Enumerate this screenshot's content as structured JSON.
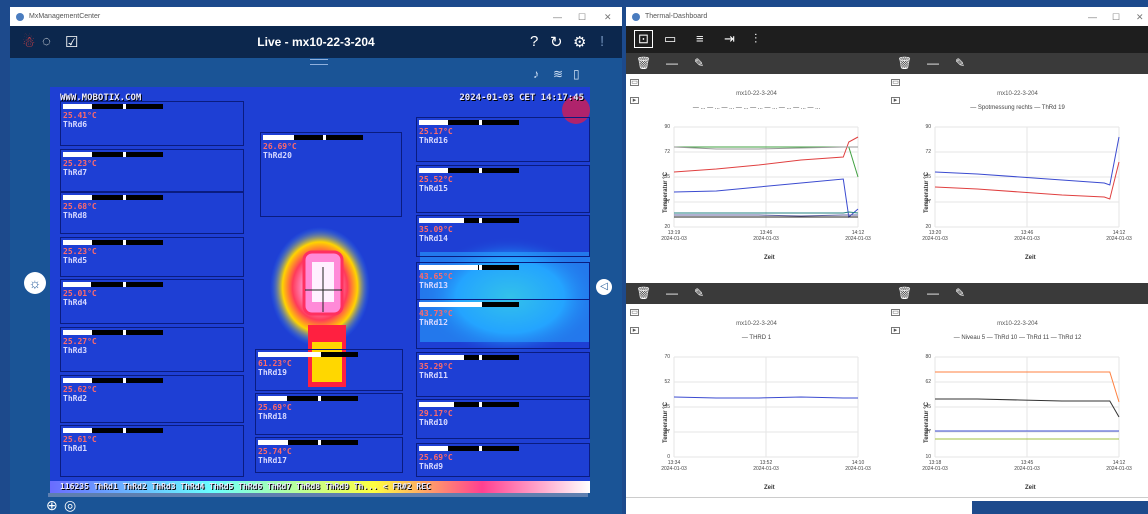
{
  "left_window": {
    "title": "MxManagementCenter",
    "header": "Live - mx10-22-3-204"
  },
  "right_window": {
    "title": "Thermal-Dashboard"
  },
  "camera": {
    "url": "WWW.MOBOTIX.COM",
    "timestamp": "2024-01-03 CET 14:17:45",
    "footer": "116235 ThRd1 ThRd2 ThRd3 ThRd4 ThRd5 ThRd6 ThRd7 ThRd8 ThRd9 Th... < FR#2 REC",
    "zones": [
      {
        "t": "25.41°C",
        "n": "ThRd6"
      },
      {
        "t": "25.23°C",
        "n": "ThRd7"
      },
      {
        "t": "25.68°C",
        "n": "ThRd8"
      },
      {
        "t": "25.23°C",
        "n": "ThRd5"
      },
      {
        "t": "25.01°C",
        "n": "ThRd4"
      },
      {
        "t": "25.27°C",
        "n": "ThRd3"
      },
      {
        "t": "25.62°C",
        "n": "ThRd2"
      },
      {
        "t": "25.61°C",
        "n": "ThRd1"
      },
      {
        "t": "26.69°C",
        "n": "ThRd20"
      },
      {
        "t": "61.23°C",
        "n": "ThRd19"
      },
      {
        "t": "25.69°C",
        "n": "ThRd18"
      },
      {
        "t": "25.74°C",
        "n": "ThRd17"
      },
      {
        "t": "25.17°C",
        "n": "ThRd16"
      },
      {
        "t": "25.52°C",
        "n": "ThRd15"
      },
      {
        "t": "35.09°C",
        "n": "ThRd14"
      },
      {
        "t": "43.65°C",
        "n": "ThRd13"
      },
      {
        "t": "43.73°C",
        "n": "ThRd12"
      },
      {
        "t": "35.29°C",
        "n": "ThRd11"
      },
      {
        "t": "29.17°C",
        "n": "ThRd10"
      },
      {
        "t": "25.69°C",
        "n": "ThRd9"
      }
    ]
  },
  "panels": [
    {
      "title": "mx10-22-3-204",
      "legend": "— ... — ... — ... — ... — ... — ... — ... — ... — ...",
      "ylabel": "Temperatur °C",
      "xlabel": "Zeit",
      "yticks": [
        "90",
        "72",
        "55",
        "37",
        "20"
      ],
      "xticks": [
        "13:19\n2024-01-03",
        "13:46\n2024-01-03",
        "14:12\n2024-01-03"
      ]
    },
    {
      "title": "mx10-22-3-204",
      "legend": "— Spotmessung rechts  — ThRd 19",
      "ylabel": "Temperatur °C",
      "xlabel": "Zeit",
      "yticks": [
        "90",
        "72",
        "55",
        "37",
        "20"
      ],
      "xticks": [
        "13:20\n2024-01-03",
        "13:46\n2024-01-03",
        "14:12\n2024-01-03"
      ]
    },
    {
      "title": "mx10-22-3-204",
      "legend": "— THRD 1",
      "ylabel": "Temperatur °C",
      "xlabel": "Zeit",
      "yticks": [
        "70",
        "52",
        "35",
        "17",
        "0"
      ],
      "xticks": [
        "13:34\n2024-01-03",
        "13:52\n2024-01-03",
        "14:10\n2024-01-03"
      ]
    },
    {
      "title": "mx10-22-3-204",
      "legend": "— Niveau 5  — ThRd 10  — ThRd 11  — ThRd 12",
      "ylabel": "Temperatur °C",
      "xlabel": "Zeit",
      "yticks": [
        "80",
        "62",
        "45",
        "27",
        "10"
      ],
      "xticks": [
        "13:18\n2024-01-03",
        "13:45\n2024-01-03",
        "14:12\n2024-01-03"
      ]
    }
  ]
}
